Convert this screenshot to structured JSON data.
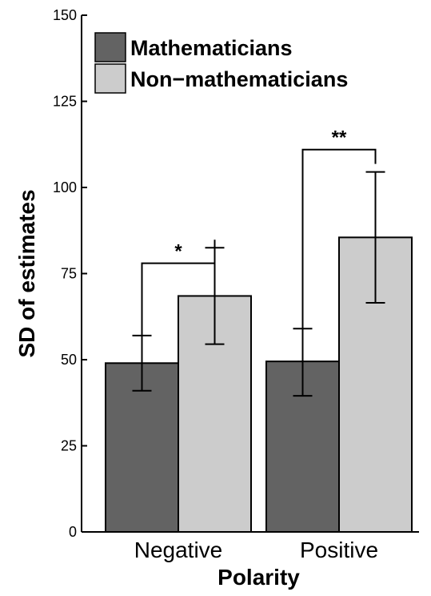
{
  "chart_data": {
    "type": "bar",
    "categories": [
      "Negative",
      "Positive"
    ],
    "series": [
      {
        "name": "Mathematicians",
        "values": [
          49,
          49.5
        ],
        "err_low": [
          41,
          39.5
        ],
        "err_high": [
          57,
          59
        ],
        "color": "#636363"
      },
      {
        "name": "Non−mathematicians",
        "values": [
          68.5,
          85.5
        ],
        "err_low": [
          54.5,
          66.5
        ],
        "err_high": [
          82.5,
          104.5
        ],
        "color": "#cccccc"
      }
    ],
    "xlabel": "Polarity",
    "ylabel": "SD of estimates",
    "ylim": [
      0,
      150
    ],
    "yticks": [
      "0",
      "25",
      "50",
      "75",
      "100",
      "125",
      "150"
    ],
    "significance": [
      {
        "category": "Negative",
        "label": "*",
        "level": 78
      },
      {
        "category": "Positive",
        "label": "**",
        "level": 111
      }
    ],
    "legend_position": "top-left",
    "grid": false
  }
}
